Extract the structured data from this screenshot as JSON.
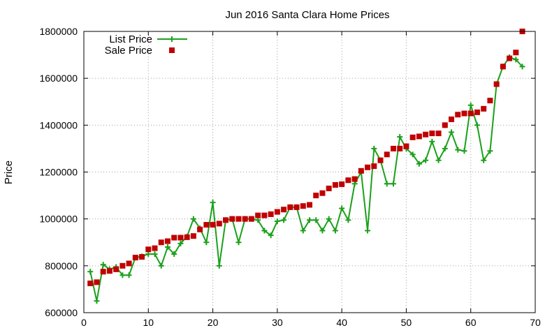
{
  "chart_data": {
    "type": "line",
    "title": "Jun 2016 Santa Clara Home Prices",
    "xlabel": "",
    "ylabel": "Price",
    "xlim": [
      0,
      70
    ],
    "ylim": [
      600000,
      1800000
    ],
    "xticks": [
      "0",
      "10",
      "20",
      "30",
      "40",
      "50",
      "60",
      "70"
    ],
    "yticks": [
      "600000",
      "800000",
      "1000000",
      "1200000",
      "1400000",
      "1600000",
      "1800000"
    ],
    "grid": true,
    "legend_position": "top-left",
    "series": [
      {
        "name": "List Price",
        "style": "line-with-plus-markers",
        "color": "#1aa01a",
        "x": [
          1,
          2,
          3,
          4,
          5,
          6,
          7,
          8,
          9,
          10,
          11,
          12,
          13,
          14,
          15,
          16,
          17,
          18,
          19,
          20,
          21,
          22,
          23,
          24,
          25,
          26,
          27,
          28,
          29,
          30,
          31,
          32,
          33,
          34,
          35,
          36,
          37,
          38,
          39,
          40,
          41,
          42,
          43,
          44,
          45,
          46,
          47,
          48,
          49,
          50,
          51,
          52,
          53,
          54,
          55,
          56,
          57,
          58,
          59,
          60,
          61,
          62,
          63,
          64,
          65,
          66,
          67,
          68
        ],
        "values": [
          775000,
          650000,
          805000,
          785000,
          795000,
          760000,
          760000,
          835000,
          840000,
          850000,
          850000,
          800000,
          880000,
          850000,
          895000,
          925000,
          1000000,
          960000,
          900000,
          1070000,
          800000,
          995000,
          1000000,
          900000,
          1000000,
          1000000,
          995000,
          950000,
          930000,
          990000,
          995000,
          1050000,
          1050000,
          950000,
          995000,
          995000,
          950000,
          1000000,
          950000,
          1045000,
          995000,
          1150000,
          1200000,
          950000,
          1300000,
          1250000,
          1150000,
          1150000,
          1350000,
          1300000,
          1275000,
          1235000,
          1250000,
          1330000,
          1250000,
          1300000,
          1370000,
          1295000,
          1290000,
          1485000,
          1400000,
          1250000,
          1290000,
          1575000,
          1650000,
          1690000,
          1680000,
          1650000
        ]
      },
      {
        "name": "Sale Price",
        "style": "square-markers",
        "color": "#c00000",
        "x": [
          1,
          2,
          3,
          4,
          5,
          6,
          7,
          8,
          9,
          10,
          11,
          12,
          13,
          14,
          15,
          16,
          17,
          18,
          19,
          20,
          21,
          22,
          23,
          24,
          25,
          26,
          27,
          28,
          29,
          30,
          31,
          32,
          33,
          34,
          35,
          36,
          37,
          38,
          39,
          40,
          41,
          42,
          43,
          44,
          45,
          46,
          47,
          48,
          49,
          50,
          51,
          52,
          53,
          54,
          55,
          56,
          57,
          58,
          59,
          60,
          61,
          62,
          63,
          64,
          65,
          66,
          67,
          68
        ],
        "values": [
          725000,
          730000,
          775000,
          778000,
          785000,
          800000,
          810000,
          835000,
          838000,
          870000,
          875000,
          900000,
          905000,
          920000,
          920000,
          922000,
          927000,
          955000,
          975000,
          975000,
          980000,
          995000,
          1000000,
          1000000,
          1000000,
          1000000,
          1015000,
          1015000,
          1020000,
          1030000,
          1040000,
          1050000,
          1050000,
          1055000,
          1060000,
          1100000,
          1110000,
          1130000,
          1145000,
          1148000,
          1165000,
          1170000,
          1205000,
          1220000,
          1225000,
          1250000,
          1275000,
          1300000,
          1300000,
          1310000,
          1348000,
          1352000,
          1360000,
          1365000,
          1365000,
          1400000,
          1425000,
          1445000,
          1450000,
          1450000,
          1455000,
          1470000,
          1505000,
          1575000,
          1650000,
          1685000,
          1710000,
          1800000
        ]
      }
    ]
  }
}
